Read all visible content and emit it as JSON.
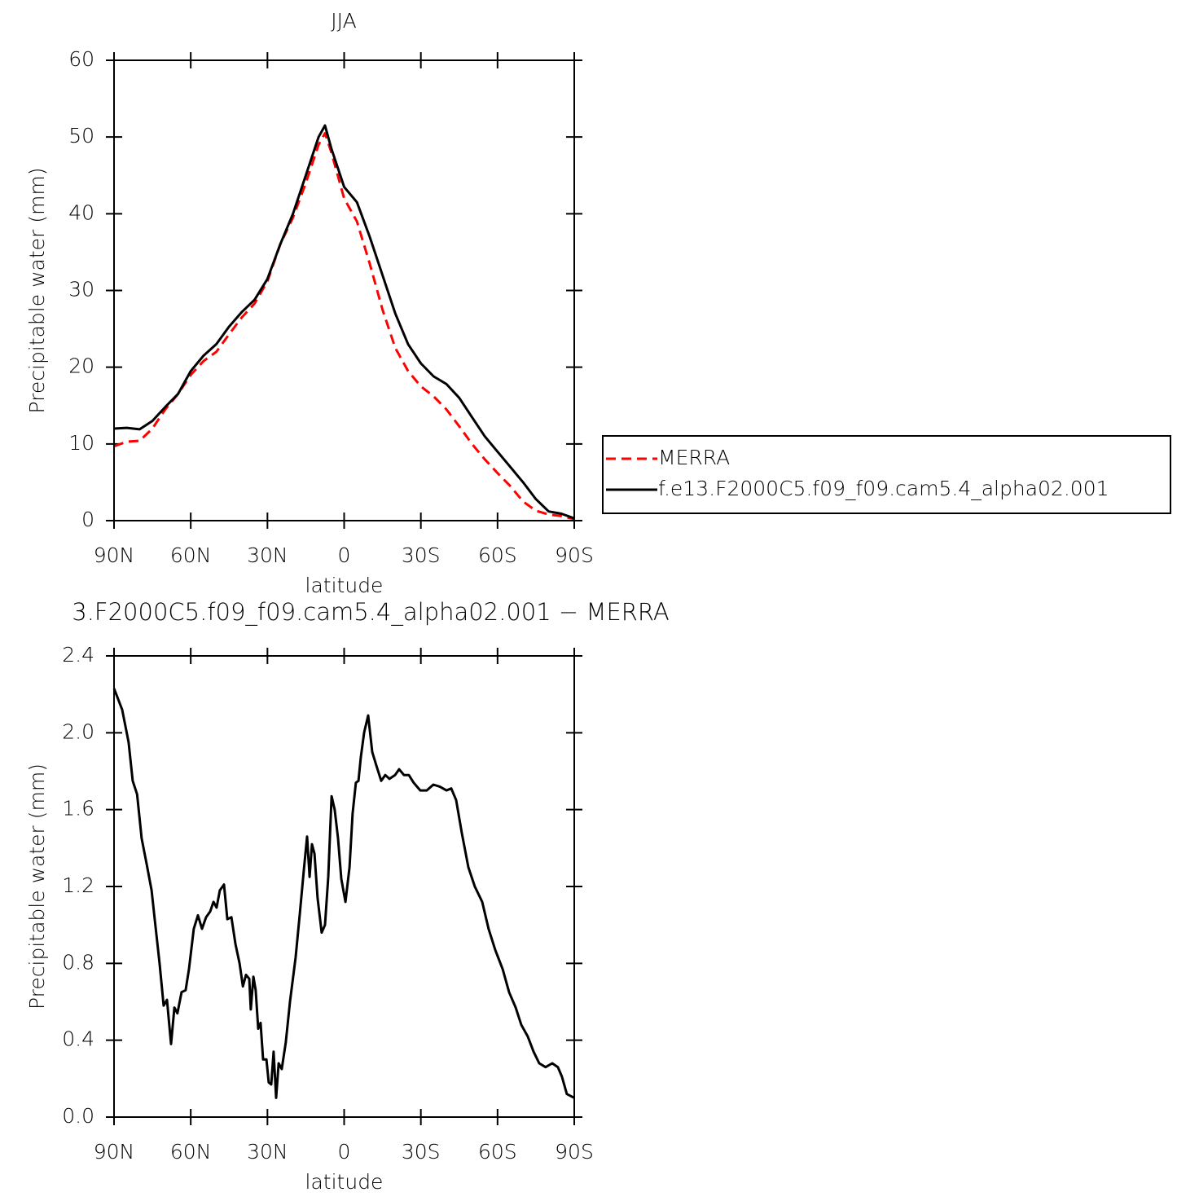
{
  "chart_data": [
    {
      "type": "line",
      "title": "JJA",
      "x_label": "latitude",
      "y_label": "Precipitable water (mm)",
      "xlim": [
        90,
        -90
      ],
      "ylim": [
        0,
        60
      ],
      "xticks": [
        {
          "value": 90,
          "label": "90N"
        },
        {
          "value": 60,
          "label": "60N"
        },
        {
          "value": 30,
          "label": "30N"
        },
        0,
        {
          "value": -30,
          "label": "30S"
        },
        {
          "value": -60,
          "label": "60S"
        },
        {
          "value": -90,
          "label": "90S"
        }
      ],
      "yticks": [
        0,
        10,
        20,
        30,
        40,
        50,
        60
      ],
      "legend": "right",
      "x": [
        90,
        85,
        80,
        75,
        70,
        65,
        60,
        55,
        50,
        45,
        40,
        35,
        30,
        25,
        20,
        15,
        10,
        7.5,
        5,
        0,
        -5,
        -10,
        -15,
        -20,
        -25,
        -30,
        -35,
        -40,
        -45,
        -50,
        -55,
        -60,
        -65,
        -70,
        -75,
        -80,
        -85,
        -90
      ],
      "series": [
        {
          "name": "MERRA",
          "color": "#ff0000",
          "line_style": "dashed",
          "values": [
            9.7,
            10.3,
            10.4,
            12.0,
            14.5,
            16.5,
            19.0,
            20.8,
            22.0,
            24.3,
            26.5,
            28.3,
            31.2,
            36.0,
            39.5,
            44.0,
            49.0,
            50.5,
            48.0,
            42.0,
            39.0,
            33.5,
            27.5,
            22.5,
            19.5,
            17.5,
            16.2,
            14.5,
            12.3,
            10.0,
            8.0,
            6.2,
            4.5,
            2.5,
            1.3,
            0.8,
            0.6,
            0.2
          ]
        },
        {
          "name": "f.e13.F2000C5.f09_f09.cam5.4_alpha02.001",
          "color": "#000000",
          "line_style": "solid",
          "values": [
            12.0,
            12.1,
            11.9,
            13.0,
            14.8,
            16.5,
            19.5,
            21.5,
            23.0,
            25.3,
            27.2,
            28.8,
            31.5,
            36.0,
            40.0,
            45.0,
            50.0,
            51.5,
            48.5,
            43.5,
            41.5,
            37.0,
            32.0,
            27.0,
            23.0,
            20.5,
            18.8,
            17.8,
            16.0,
            13.5,
            11.0,
            9.0,
            7.0,
            5.0,
            2.8,
            1.2,
            0.9,
            0.3
          ]
        }
      ]
    },
    {
      "type": "line",
      "title": "3.F2000C5.f09_f09.cam5.4_alpha02.001 − MERRA",
      "x_label": "latitude",
      "y_label": "Precipitable water (mm)",
      "xlim": [
        90,
        -90
      ],
      "ylim": [
        0,
        2.4
      ],
      "xticks": [
        {
          "value": 90,
          "label": "90N"
        },
        {
          "value": 60,
          "label": "60N"
        },
        {
          "value": 30,
          "label": "30N"
        },
        0,
        {
          "value": -30,
          "label": "30S"
        },
        {
          "value": -60,
          "label": "60S"
        },
        {
          "value": -90,
          "label": "90S"
        }
      ],
      "yticks": [
        {
          "value": 0,
          "label": "0.0"
        },
        0.4,
        0.8,
        1.2,
        1.6,
        {
          "value": 2,
          "label": "2.0"
        },
        2.4
      ],
      "color": "#000000",
      "x": [
        90,
        86.8,
        84.3,
        82.7,
        81,
        79.2,
        77.3,
        75.3,
        74,
        72.2,
        70.6,
        69.3,
        67.7,
        66.4,
        65.2,
        63.6,
        62,
        60.7,
        58.8,
        57.2,
        55.6,
        54,
        52.4,
        51.1,
        49.9,
        48.6,
        47,
        45.7,
        44.1,
        42.5,
        40.9,
        39.6,
        38.4,
        37.1,
        36.5,
        35.5,
        34.6,
        33.6,
        32.7,
        31.7,
        30.4,
        29.5,
        28.5,
        27.6,
        26.6,
        25.6,
        24.4,
        22.8,
        21.2,
        19,
        17.4,
        15.8,
        14.5,
        13.5,
        12.6,
        11.6,
        10.4,
        8.8,
        7.5,
        6.2,
        4.9,
        3.7,
        2.4,
        1.1,
        -0.5,
        -2.1,
        -3.3,
        -4.6,
        -5.6,
        -6.5,
        -7.8,
        -9.4,
        -11,
        -12.6,
        -14.5,
        -16.1,
        -17.7,
        -19.9,
        -21.5,
        -23.4,
        -25.3,
        -27.2,
        -29.8,
        -32.3,
        -34.9,
        -37.4,
        -40,
        -41.9,
        -43.8,
        -46,
        -48.6,
        -51.1,
        -54,
        -56.5,
        -59.1,
        -62,
        -64.5,
        -67.1,
        -69.3,
        -71.8,
        -74.1,
        -76.3,
        -78.8,
        -81.4,
        -83.6,
        -85.2,
        -87.1,
        -90
      ],
      "values": [
        2.23,
        2.12,
        1.95,
        1.75,
        1.68,
        1.45,
        1.32,
        1.18,
        1.02,
        0.8,
        0.58,
        0.61,
        0.38,
        0.57,
        0.54,
        0.65,
        0.66,
        0.77,
        0.98,
        1.05,
        0.98,
        1.04,
        1.07,
        1.12,
        1.09,
        1.18,
        1.21,
        1.03,
        1.04,
        0.9,
        0.8,
        0.68,
        0.74,
        0.72,
        0.56,
        0.73,
        0.66,
        0.46,
        0.49,
        0.3,
        0.3,
        0.18,
        0.17,
        0.34,
        0.1,
        0.28,
        0.25,
        0.39,
        0.6,
        0.83,
        1.05,
        1.28,
        1.46,
        1.25,
        1.42,
        1.37,
        1.14,
        0.96,
        1.0,
        1.25,
        1.67,
        1.6,
        1.45,
        1.24,
        1.12,
        1.3,
        1.58,
        1.74,
        1.75,
        1.87,
        2.0,
        2.09,
        1.9,
        1.83,
        1.75,
        1.78,
        1.76,
        1.78,
        1.81,
        1.78,
        1.78,
        1.74,
        1.7,
        1.7,
        1.73,
        1.72,
        1.7,
        1.71,
        1.65,
        1.48,
        1.3,
        1.2,
        1.12,
        0.98,
        0.87,
        0.77,
        0.65,
        0.57,
        0.48,
        0.42,
        0.34,
        0.28,
        0.26,
        0.28,
        0.26,
        0.21,
        0.12,
        0.1
      ]
    }
  ]
}
